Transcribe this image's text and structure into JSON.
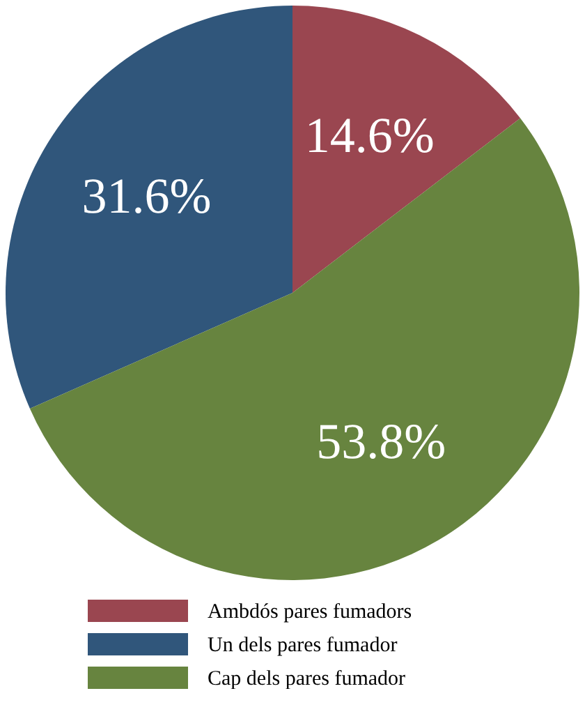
{
  "chart_data": {
    "type": "pie",
    "categories": [
      "Ambdós pares fumadors",
      "Un dels pares fumador",
      "Cap dels pares fumador"
    ],
    "values": [
      14.6,
      31.6,
      53.8
    ],
    "value_labels": [
      "14.6%",
      "31.6%",
      "53.8%"
    ],
    "colors": [
      "#9a4650",
      "#30567b",
      "#67843f"
    ],
    "legend": "bottom"
  }
}
